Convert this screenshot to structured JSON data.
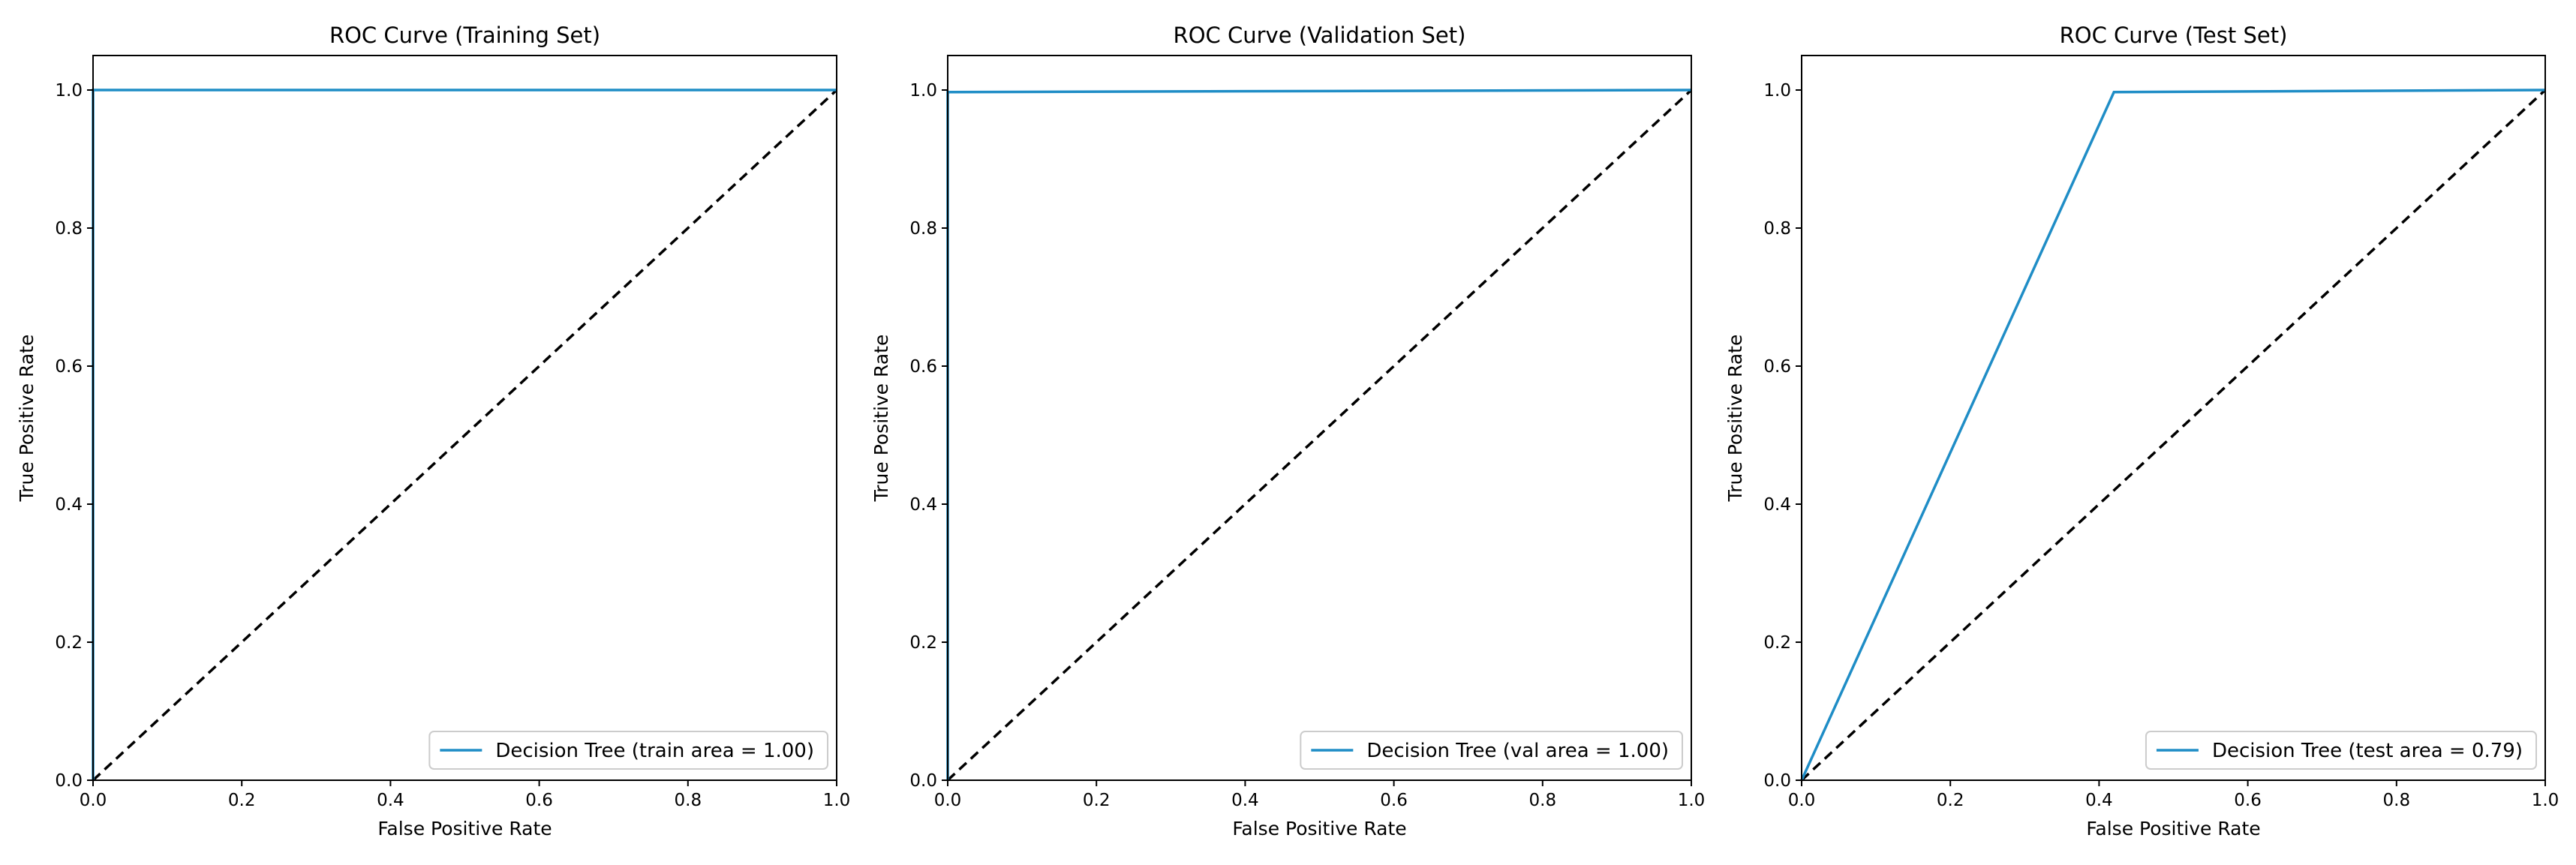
{
  "colors": {
    "curve": "#1f8dc6",
    "diagonal": "#000000",
    "frame": "#000000",
    "legend_border": "#cccccc",
    "background": "#ffffff"
  },
  "chart_data": [
    {
      "type": "line",
      "title": "ROC Curve (Training Set)",
      "xlabel": "False Positive Rate",
      "ylabel": "True Positive Rate",
      "xlim": [
        0,
        1
      ],
      "ylim": [
        0,
        1.05
      ],
      "x_ticks": [
        "0.0",
        "0.2",
        "0.4",
        "0.6",
        "0.8",
        "1.0"
      ],
      "y_ticks": [
        "0.0",
        "0.2",
        "0.4",
        "0.6",
        "0.8",
        "1.0"
      ],
      "legend_position": "lower-right",
      "series": [
        {
          "name": "Decision Tree (train area = 1.00)",
          "x": [
            0,
            0,
            1
          ],
          "y": [
            0,
            1,
            1
          ]
        }
      ],
      "reference_line": {
        "x": [
          0,
          1
        ],
        "y": [
          0,
          1
        ],
        "style": "dashed"
      }
    },
    {
      "type": "line",
      "title": "ROC Curve (Validation Set)",
      "xlabel": "False Positive Rate",
      "ylabel": "True Positive Rate",
      "xlim": [
        0,
        1
      ],
      "ylim": [
        0,
        1.05
      ],
      "x_ticks": [
        "0.0",
        "0.2",
        "0.4",
        "0.6",
        "0.8",
        "1.0"
      ],
      "y_ticks": [
        "0.0",
        "0.2",
        "0.4",
        "0.6",
        "0.8",
        "1.0"
      ],
      "legend_position": "lower-right",
      "series": [
        {
          "name": "Decision Tree (val area = 1.00)",
          "x": [
            0,
            0,
            1
          ],
          "y": [
            0,
            0.997,
            1
          ]
        }
      ],
      "reference_line": {
        "x": [
          0,
          1
        ],
        "y": [
          0,
          1
        ],
        "style": "dashed"
      }
    },
    {
      "type": "line",
      "title": "ROC Curve (Test Set)",
      "xlabel": "False Positive Rate",
      "ylabel": "True Positive Rate",
      "xlim": [
        0,
        1
      ],
      "ylim": [
        0,
        1.05
      ],
      "x_ticks": [
        "0.0",
        "0.2",
        "0.4",
        "0.6",
        "0.8",
        "1.0"
      ],
      "y_ticks": [
        "0.0",
        "0.2",
        "0.4",
        "0.6",
        "0.8",
        "1.0"
      ],
      "legend_position": "lower-right",
      "series": [
        {
          "name": "Decision Tree (test area = 0.79)",
          "x": [
            0,
            0.42,
            1
          ],
          "y": [
            0,
            0.997,
            1
          ]
        }
      ],
      "reference_line": {
        "x": [
          0,
          1
        ],
        "y": [
          0,
          1
        ],
        "style": "dashed"
      }
    }
  ]
}
